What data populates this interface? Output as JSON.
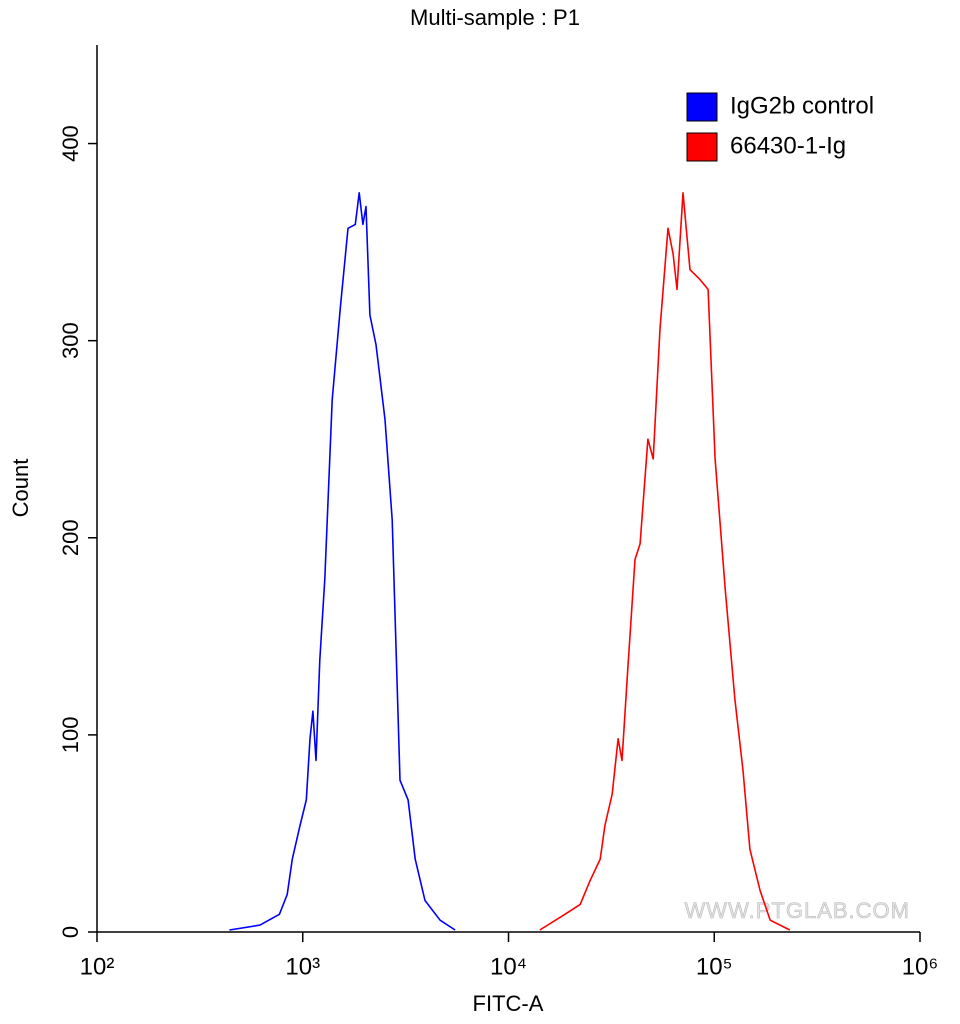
{
  "chart_data": {
    "type": "line",
    "title": "Multi-sample : P1",
    "xlabel": "FITC-A",
    "ylabel": "Count",
    "watermark": "WWW.PTGLAB.COM",
    "xscale": "log",
    "xlim": [
      100,
      1000000
    ],
    "xticks": [
      {
        "value": 100,
        "label": "10²"
      },
      {
        "value": 1000,
        "label": "10³"
      },
      {
        "value": 10000,
        "label": "10⁴"
      },
      {
        "value": 100000,
        "label": "10⁵"
      },
      {
        "value": 1000000,
        "label": "10⁶"
      }
    ],
    "ylim": [
      0,
      450
    ],
    "yticks": [
      0,
      100,
      200,
      300,
      400
    ],
    "legend": "upper right",
    "series": [
      {
        "name": "IgG2b control",
        "color": "#0000ff",
        "x": [
          440,
          620,
          770,
          840,
          890,
          970,
          1040,
          1085,
          1120,
          1160,
          1210,
          1280,
          1390,
          1520,
          1660,
          1800,
          1880,
          1960,
          2030,
          2120,
          2270,
          2510,
          2720,
          2970,
          3250,
          3520,
          3930,
          4650,
          5500
        ],
        "values": [
          1,
          3.5,
          9,
          19,
          37,
          54,
          67,
          98,
          112,
          87,
          138,
          179,
          270,
          316,
          357,
          359,
          375,
          359,
          368,
          313,
          298,
          260,
          209,
          77,
          67,
          37,
          16,
          6,
          1
        ]
      },
      {
        "name": "66430-1-Ig",
        "color": "#ff0000",
        "x": [
          14200,
          18800,
          22300,
          24900,
          27900,
          29400,
          31900,
          34100,
          35600,
          37700,
          41200,
          43600,
          47600,
          50500,
          54500,
          59600,
          63100,
          65900,
          70500,
          76200,
          85300,
          93300,
          101000,
          113000,
          126000,
          138000,
          149000,
          167000,
          187000,
          233000
        ],
        "values": [
          1,
          9,
          14,
          26,
          37,
          54,
          70,
          98,
          87,
          128,
          189,
          197,
          250,
          240,
          306,
          357,
          344,
          326,
          375,
          336,
          331,
          326,
          240,
          174,
          118,
          82,
          42,
          21,
          6,
          1
        ]
      }
    ]
  }
}
